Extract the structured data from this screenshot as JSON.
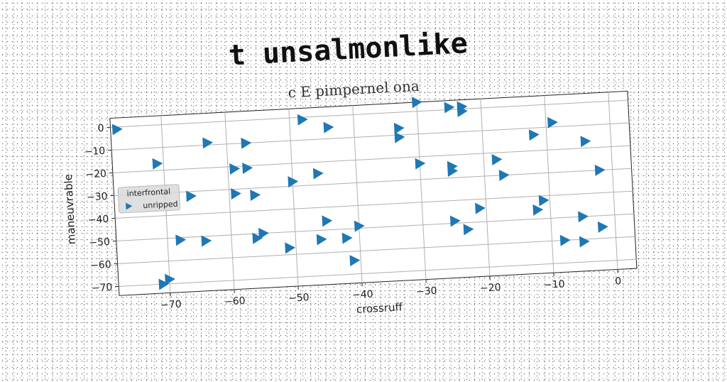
{
  "chart_data": {
    "type": "scatter",
    "title": "t unsalmonlike",
    "subtitle": "c E pimpernel ona",
    "xlabel": "crossruff",
    "ylabel": "maneuvrable",
    "xlim": [
      -78,
      3
    ],
    "ylim": [
      -74,
      4
    ],
    "xticks": [
      -70,
      -60,
      -50,
      -40,
      -30,
      -20,
      -10,
      0
    ],
    "yticks": [
      0,
      -10,
      -20,
      -30,
      -40,
      -50,
      -60,
      -70
    ],
    "grid": true,
    "legend": {
      "title": "interfrontal",
      "placement": "center-left"
    },
    "marker": "triangle-right",
    "series": [
      {
        "name": "unripped",
        "color": "#1f77b4",
        "points": [
          [
            -77,
            -1
          ],
          [
            -71,
            -17
          ],
          [
            -70,
            -68
          ],
          [
            -71,
            -70
          ],
          [
            -68,
            -51
          ],
          [
            -66,
            -32
          ],
          [
            -64,
            -52
          ],
          [
            -63,
            -9
          ],
          [
            -59,
            -21
          ],
          [
            -59,
            -32
          ],
          [
            -57,
            -21
          ],
          [
            -57,
            -10
          ],
          [
            -56,
            -33
          ],
          [
            -56,
            -52
          ],
          [
            -55,
            -50
          ],
          [
            -51,
            -57
          ],
          [
            -50,
            -28
          ],
          [
            -48,
            -1
          ],
          [
            -46,
            -25
          ],
          [
            -46,
            -54
          ],
          [
            -45,
            -46
          ],
          [
            -44,
            -5
          ],
          [
            -42,
            -54
          ],
          [
            -41,
            -64
          ],
          [
            -40,
            -49
          ],
          [
            -33,
            -7
          ],
          [
            -33,
            -11
          ],
          [
            -30,
            -23
          ],
          [
            -30,
            4
          ],
          [
            -25,
            1
          ],
          [
            -25,
            -25
          ],
          [
            -25,
            -27
          ],
          [
            -25,
            -49
          ],
          [
            -23,
            -53
          ],
          [
            -23,
            1
          ],
          [
            -23,
            -1
          ],
          [
            -21,
            -44
          ],
          [
            -18,
            -23
          ],
          [
            -17,
            -30
          ],
          [
            -12,
            -46
          ],
          [
            -12,
            -13
          ],
          [
            -11,
            -42
          ],
          [
            -9,
            -8
          ],
          [
            -8,
            -60
          ],
          [
            -5,
            -61
          ],
          [
            -5,
            -50
          ],
          [
            -4,
            -17
          ],
          [
            -2,
            -30
          ],
          [
            -2,
            -55
          ]
        ]
      }
    ]
  }
}
